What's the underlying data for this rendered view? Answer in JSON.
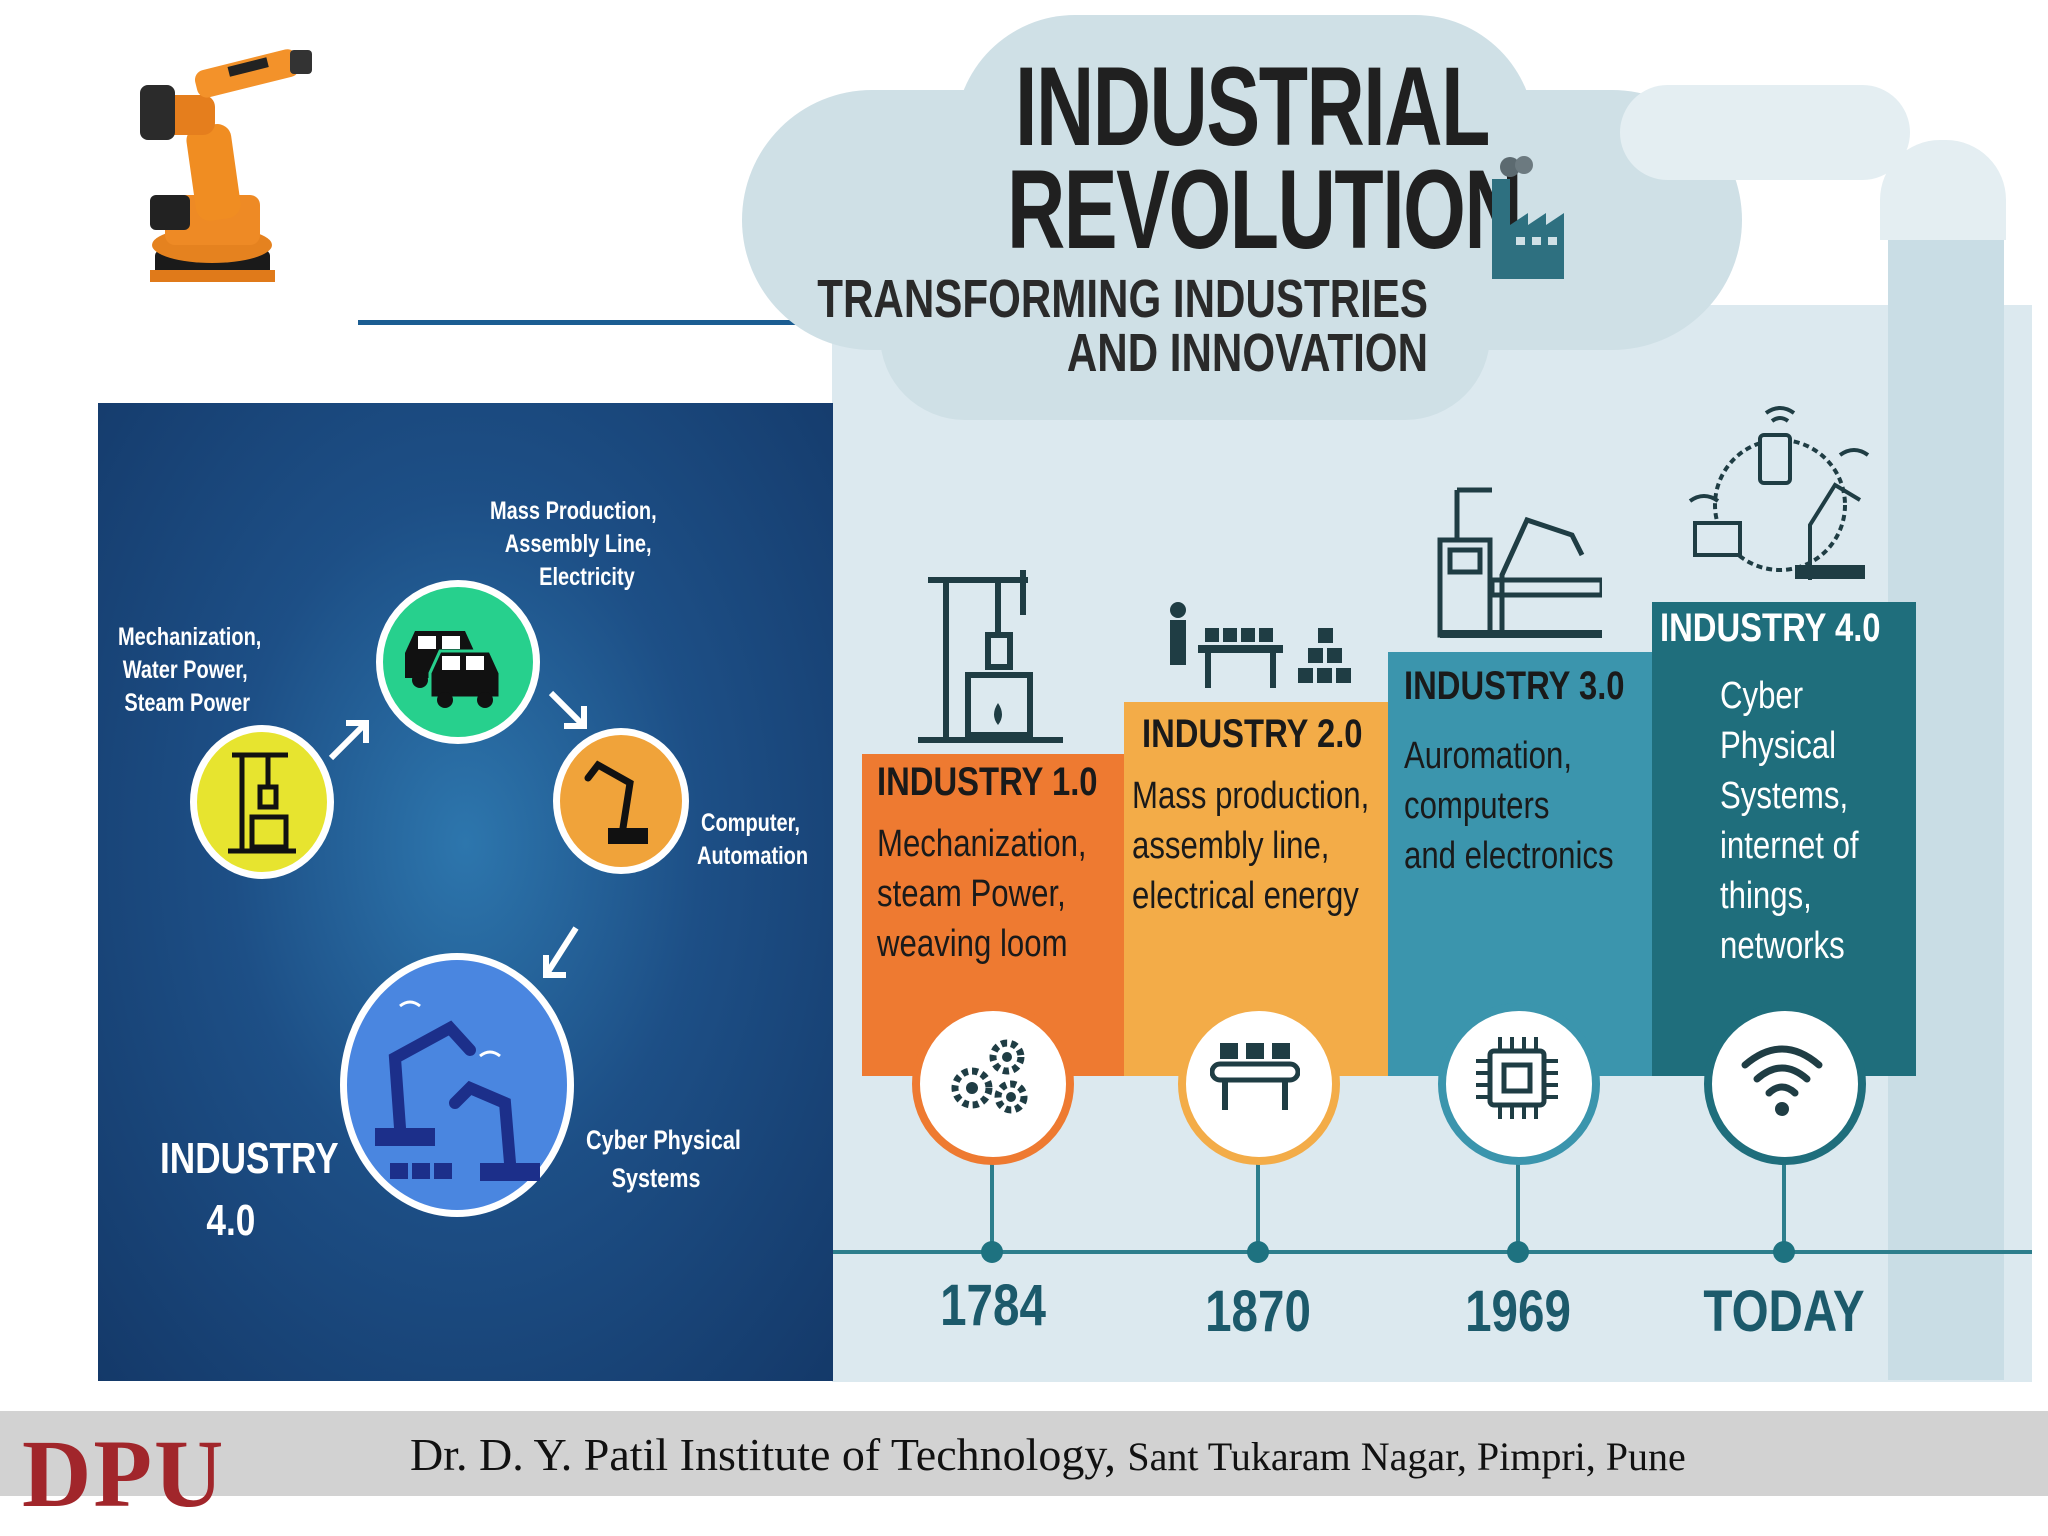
{
  "title": {
    "line1": "INDUSTRIAL",
    "line2": "REVOLUTION",
    "sub1": "TRANSFORMING INDUSTRIES",
    "sub2": "AND INNOVATION"
  },
  "left_panel": {
    "mech": [
      "Mechanization,",
      "Water Power,",
      "Steam Power"
    ],
    "mass": [
      "Mass Production,",
      "Assembly Line,",
      "Electricity"
    ],
    "computer": [
      "Computer,",
      "Automation"
    ],
    "cps": [
      "Cyber Physical",
      "Systems"
    ],
    "industry": [
      "INDUSTRY",
      "4.0"
    ]
  },
  "industries": [
    {
      "heading": "INDUSTRY 1.0",
      "lines": [
        "Mechanization,",
        "steam Power,",
        "weaving loom"
      ],
      "year": "1784",
      "color": "#ee7a31",
      "icon": "gears-icon"
    },
    {
      "heading": "INDUSTRY 2.0",
      "lines": [
        "Mass production,",
        "assembly line,",
        "electrical energy"
      ],
      "year": "1870",
      "color": "#f3ac48",
      "icon": "conveyor-icon"
    },
    {
      "heading": "INDUSTRY 3.0",
      "lines": [
        "Auromation,",
        "computers",
        "and electronics"
      ],
      "year": "1969",
      "color": "#3b95ad",
      "icon": "chip-icon"
    },
    {
      "heading": "INDUSTRY 4.0",
      "lines": [
        "Cyber",
        "Physical",
        "Systems,",
        "internet of",
        "things,",
        "networks"
      ],
      "year": "TODAY",
      "color": "#1f6e7c",
      "icon": "wifi-icon"
    }
  ],
  "footer": {
    "logo": "DPU",
    "institute": "Dr. D. Y. Patil Institute of Technology,",
    "address": "Sant Tukaram Nagar, Pimpri, Pune"
  },
  "colors": {
    "header_line": "#1b5d92",
    "logo": "#a1262b"
  }
}
